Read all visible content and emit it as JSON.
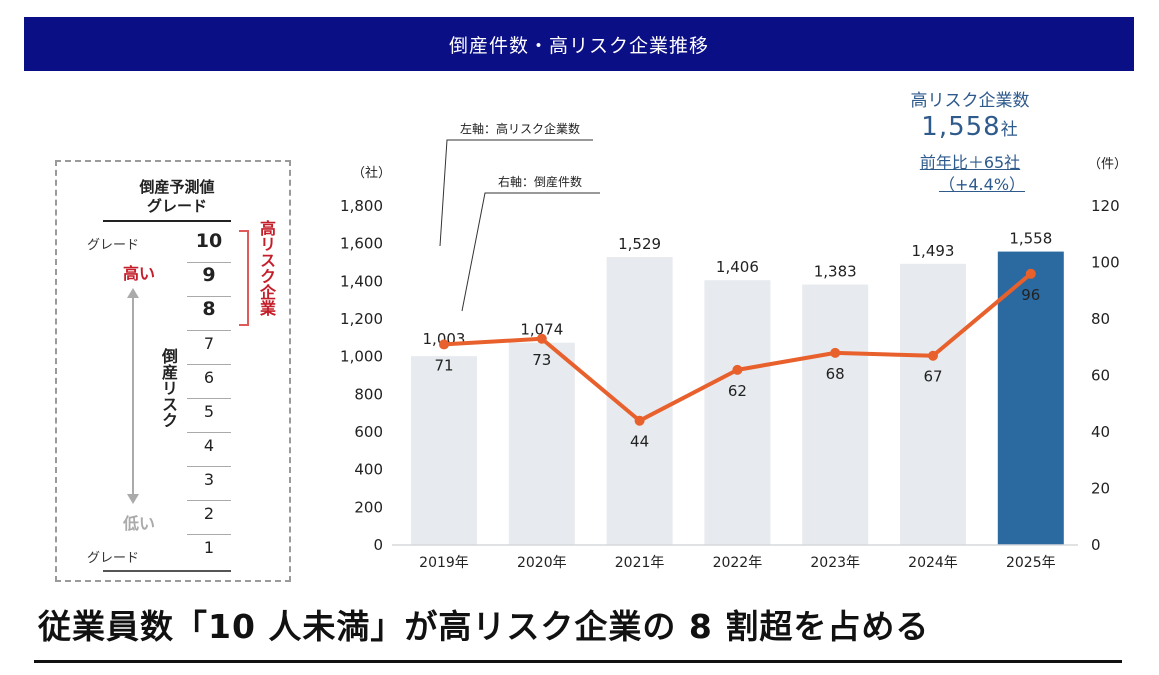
{
  "banner": {
    "title": "倒産件数・高リスク企業推移"
  },
  "grade_legend": {
    "title_line1": "倒産予測値",
    "title_line2": "グレード",
    "top_side_label": "グレード",
    "bottom_side_label": "グレード",
    "high_label": "高い",
    "low_label": "低い",
    "risk_label": "倒産リスク",
    "high_risk_label": "高リスク企業",
    "grades": [
      "10",
      "9",
      "8",
      "7",
      "6",
      "5",
      "4",
      "3",
      "2",
      "1"
    ]
  },
  "summary": {
    "title": "高リスク企業数",
    "value": "1,558",
    "value_unit": "社",
    "yoy_line1": "前年比＋65社",
    "yoy_line2": "（+4.4%）"
  },
  "headline": {
    "text": "従業員数「10 人未満」が高リスク企業の 8 割超を占める"
  },
  "chart_data": {
    "type": "bar",
    "title": "倒産件数・高リスク企業推移",
    "categories": [
      "2019年",
      "2020年",
      "2021年",
      "2022年",
      "2023年",
      "2024年",
      "2025年"
    ],
    "left_axis": {
      "unit": "（社）",
      "ylim": [
        0,
        1800
      ],
      "ticks": [
        "0",
        "200",
        "400",
        "600",
        "800",
        "1,000",
        "1,200",
        "1,400",
        "1,600",
        "1,800"
      ]
    },
    "right_axis": {
      "unit": "（件）",
      "ylim": [
        0,
        120
      ],
      "ticks": [
        "0",
        "20",
        "40",
        "60",
        "80",
        "100",
        "120"
      ]
    },
    "callouts": {
      "left": "左軸：高リスク企業数",
      "right": "右軸：倒産件数"
    },
    "series": [
      {
        "name": "高リスク企業数",
        "type": "bar",
        "axis": "left",
        "values": [
          1003,
          1074,
          1529,
          1406,
          1383,
          1493,
          1558
        ],
        "labels": [
          "1,003",
          "1,074",
          "1,529",
          "1,406",
          "1,383",
          "1,493",
          "1,558"
        ],
        "color": "#e7eaee",
        "highlight_color": "#2b6aa0"
      },
      {
        "name": "倒産件数",
        "type": "line",
        "axis": "right",
        "values": [
          71,
          73,
          44,
          62,
          68,
          67,
          96
        ],
        "labels": [
          "71",
          "73",
          "44",
          "62",
          "68",
          "67",
          "96"
        ],
        "color": "#e8602c"
      }
    ],
    "grid": false,
    "legend": "none"
  }
}
